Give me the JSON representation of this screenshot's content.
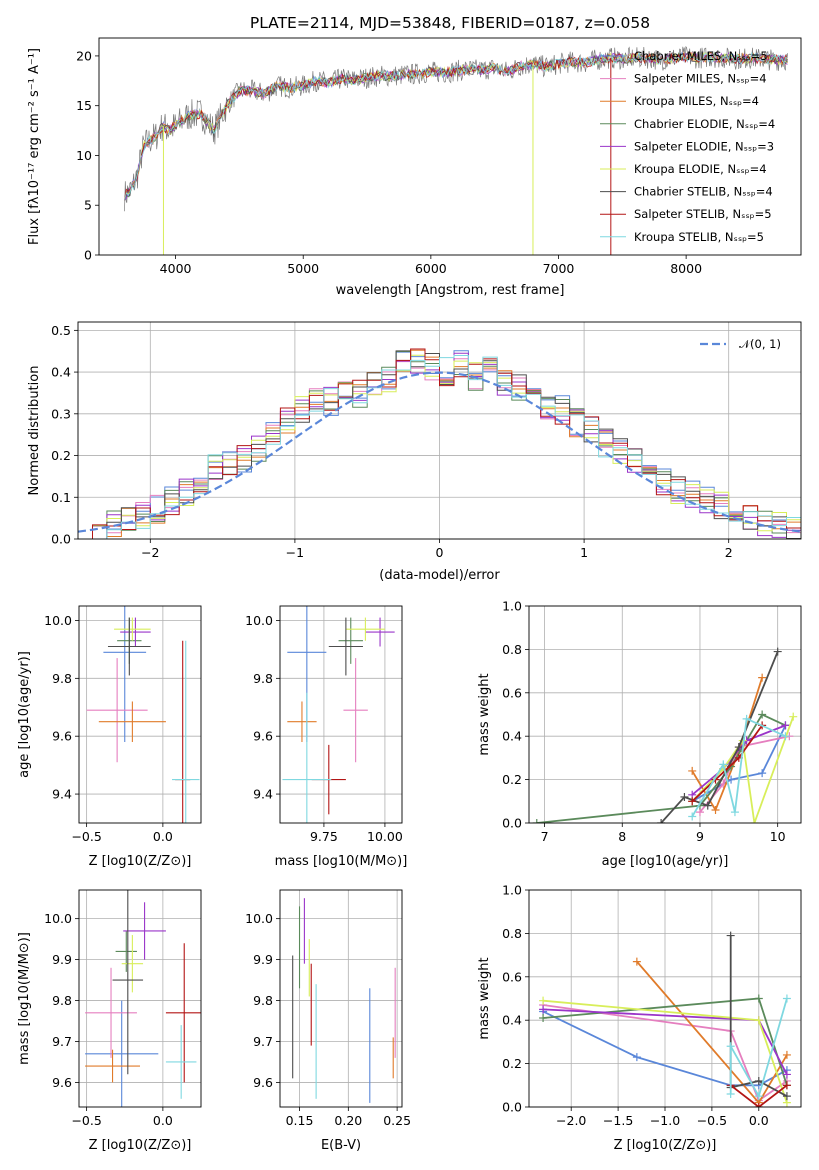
{
  "chart_data": [
    {
      "id": "spectrum",
      "type": "line",
      "title": "PLATE=2114, MJD=53848, FIBERID=0187, z=0.058",
      "xlabel": "wavelength [Angstrom, rest frame]",
      "ylabel": "Flux [fλ10⁻¹⁷ erg cm⁻² s⁻¹ A⁻¹]",
      "xlim": [
        3400,
        8900
      ],
      "ylim": [
        0,
        21.8
      ],
      "xticks": [
        4000,
        5000,
        6000,
        7000,
        8000
      ],
      "yticks": [
        0,
        5,
        10,
        15,
        20
      ],
      "grid": false,
      "legend_position": "right",
      "x": [
        3600,
        3650,
        3700,
        3750,
        3800,
        3850,
        3900,
        3950,
        4000,
        4100,
        4200,
        4300,
        4400,
        4500,
        4600,
        4700,
        4800,
        4900,
        5000,
        5100,
        5200,
        5300,
        5400,
        5500,
        5600,
        5700,
        5800,
        5900,
        6000,
        6100,
        6200,
        6300,
        6400,
        6500,
        6600,
        6700,
        6800,
        6900,
        7000,
        7100,
        7200,
        7300,
        7400,
        7500,
        7600,
        7700,
        7800,
        7900,
        8000,
        8100,
        8200,
        8300,
        8400,
        8500,
        8600,
        8700,
        8800
      ],
      "values": [
        6,
        6.5,
        8,
        11,
        11.5,
        12,
        13,
        12.5,
        13,
        14,
        14.2,
        12.5,
        15,
        16.5,
        16.5,
        16.2,
        17,
        16.8,
        17,
        17.5,
        17.3,
        17.7,
        17.6,
        17.8,
        18,
        18,
        18.1,
        18.2,
        18.4,
        18.3,
        18.5,
        18.6,
        18.6,
        18.8,
        18.4,
        19,
        19.2,
        18.9,
        19.2,
        19.4,
        19.3,
        19.6,
        19.8,
        19.7,
        19.8,
        19.8,
        19.6,
        19.8,
        19.9,
        19.8,
        19.9,
        19.8,
        19.7,
        19.8,
        19.7,
        19.6,
        19.6
      ],
      "series_names": [
        "Chabrier MILES, N_SSP=5",
        "Salpeter MILES, N_SSP=4",
        "Kroupa MILES, N_SSP=4",
        "Chabrier ELODIE, N_SSP=4",
        "Salpeter ELODIE, N_SSP=3",
        "Kroupa ELODIE, N_SSP=4",
        "Chabrier STELIB, N_SSP=4",
        "Salpeter STELIB, N_SSP=5",
        "Kroupa STELIB, N_SSP=5"
      ],
      "series_colors": [
        "#5a87d9",
        "#e57fbf",
        "#e07b2a",
        "#5b8a5b",
        "#9a35c9",
        "#d8ee5a",
        "#4d4d4d",
        "#b31515",
        "#7fd8e0"
      ]
    },
    {
      "id": "residuals",
      "type": "histogram",
      "xlabel": "(data-model)/error",
      "ylabel": "Normed distribution",
      "xlim": [
        -2.5,
        2.5
      ],
      "ylim": [
        0,
        0.52
      ],
      "xticks": [
        -2,
        -1,
        0,
        1,
        2
      ],
      "yticks": [
        0.0,
        0.1,
        0.2,
        0.3,
        0.4,
        0.5
      ],
      "grid": true,
      "legend": "𝒩(0, 1)",
      "legend_position": "top-right",
      "bin_centers": [
        -2.45,
        -2.35,
        -2.25,
        -2.15,
        -2.05,
        -1.95,
        -1.85,
        -1.75,
        -1.65,
        -1.55,
        -1.45,
        -1.35,
        -1.25,
        -1.15,
        -1.05,
        -0.95,
        -0.85,
        -0.75,
        -0.65,
        -0.55,
        -0.45,
        -0.35,
        -0.25,
        -0.15,
        -0.05,
        0.05,
        0.15,
        0.25,
        0.35,
        0.45,
        0.55,
        0.65,
        0.75,
        0.85,
        0.95,
        1.05,
        1.15,
        1.25,
        1.35,
        1.45,
        1.55,
        1.65,
        1.75,
        1.85,
        1.95,
        2.05,
        2.15,
        2.25,
        2.35,
        2.45
      ],
      "values": [
        0.02,
        0.03,
        0.04,
        0.05,
        0.06,
        0.07,
        0.09,
        0.11,
        0.14,
        0.17,
        0.18,
        0.19,
        0.22,
        0.25,
        0.28,
        0.31,
        0.34,
        0.33,
        0.36,
        0.35,
        0.37,
        0.38,
        0.42,
        0.43,
        0.41,
        0.4,
        0.42,
        0.39,
        0.41,
        0.37,
        0.36,
        0.33,
        0.32,
        0.31,
        0.28,
        0.26,
        0.23,
        0.21,
        0.19,
        0.16,
        0.14,
        0.12,
        0.11,
        0.09,
        0.08,
        0.06,
        0.05,
        0.04,
        0.03,
        0.02
      ]
    },
    {
      "id": "age-vs-Z",
      "type": "errorbar",
      "xlabel": "Z [log10(Z/Z⊙)]",
      "ylabel": "age  [log10(age/yr)]",
      "xlim": [
        -0.55,
        0.25
      ],
      "ylim": [
        9.3,
        10.05
      ],
      "xticks": [
        -0.5,
        0.0
      ],
      "yticks": [
        9.4,
        9.6,
        9.8,
        10.0
      ],
      "grid": true,
      "points": [
        {
          "x": -0.25,
          "y": 9.89,
          "xerr": 0.14,
          "yerr": 0.31
        },
        {
          "x": -0.3,
          "y": 9.69,
          "xerr": 0.2,
          "yerr": 0.18
        },
        {
          "x": -0.2,
          "y": 9.65,
          "xerr": 0.22,
          "yerr": 0.07
        },
        {
          "x": -0.22,
          "y": 9.93,
          "xerr": 0.08,
          "yerr": 0.08
        },
        {
          "x": -0.18,
          "y": 9.96,
          "xerr": 0.1,
          "yerr": 0.05
        },
        {
          "x": -0.2,
          "y": 9.97,
          "xerr": 0.12,
          "yerr": 0.04
        },
        {
          "x": -0.22,
          "y": 9.91,
          "xerr": 0.14,
          "yerr": 0.1
        },
        {
          "x": 0.13,
          "y": 9.45,
          "xerr": 0.05,
          "yerr": 0.48
        },
        {
          "x": 0.15,
          "y": 9.45,
          "xerr": 0.09,
          "yerr": 0.48
        }
      ]
    },
    {
      "id": "age-vs-mass",
      "type": "errorbar",
      "xlabel": "mass [log10(M/M⊙)]",
      "ylabel": "",
      "xlim": [
        9.57,
        10.07
      ],
      "ylim": [
        9.3,
        10.05
      ],
      "xticks": [
        9.75,
        10.0
      ],
      "yticks": [
        9.4,
        9.6,
        9.8,
        10.0
      ],
      "grid": true,
      "points": [
        {
          "x": 9.68,
          "y": 9.89,
          "xerr": 0.08,
          "yerr": 0.31
        },
        {
          "x": 9.88,
          "y": 9.69,
          "xerr": 0.05,
          "yerr": 0.18
        },
        {
          "x": 9.66,
          "y": 9.65,
          "xerr": 0.06,
          "yerr": 0.07
        },
        {
          "x": 9.86,
          "y": 9.93,
          "xerr": 0.05,
          "yerr": 0.08
        },
        {
          "x": 9.98,
          "y": 9.96,
          "xerr": 0.06,
          "yerr": 0.05
        },
        {
          "x": 9.92,
          "y": 9.97,
          "xerr": 0.08,
          "yerr": 0.04
        },
        {
          "x": 9.84,
          "y": 9.91,
          "xerr": 0.07,
          "yerr": 0.1
        },
        {
          "x": 9.77,
          "y": 9.45,
          "xerr": 0.07,
          "yerr": 0.12
        },
        {
          "x": 9.68,
          "y": 9.45,
          "xerr": 0.1,
          "yerr": 0.3
        }
      ]
    },
    {
      "id": "weight-vs-age",
      "type": "line",
      "xlabel": "age  [log10(age/yr)]",
      "ylabel": "mass weight",
      "xlim": [
        6.8,
        10.3
      ],
      "ylim": [
        0,
        1.0
      ],
      "xticks": [
        7,
        8,
        9,
        10
      ],
      "yticks": [
        0.0,
        0.2,
        0.4,
        0.6,
        0.8,
        1.0
      ],
      "grid": true,
      "series": [
        {
          "x": [
            8.9,
            9.4,
            9.8,
            10.1
          ],
          "values": [
            0.1,
            0.2,
            0.23,
            0.45
          ]
        },
        {
          "x": [
            9.0,
            9.3,
            9.5,
            10.15
          ],
          "values": [
            0.05,
            0.18,
            0.35,
            0.4
          ]
        },
        {
          "x": [
            8.9,
            9.2,
            9.5,
            9.8
          ],
          "values": [
            0.24,
            0.06,
            0.33,
            0.67
          ]
        },
        {
          "x": [
            6.9,
            9.0,
            9.4,
            9.8,
            10.1
          ],
          "values": [
            0.0,
            0.08,
            0.26,
            0.5,
            0.45
          ]
        },
        {
          "x": [
            8.9,
            9.3,
            9.6,
            10.1
          ],
          "values": [
            0.13,
            0.25,
            0.38,
            0.45
          ]
        },
        {
          "x": [
            8.9,
            9.3,
            9.55,
            9.7,
            10.2
          ],
          "values": [
            0.1,
            0.25,
            0.38,
            0.0,
            0.49
          ]
        },
        {
          "x": [
            8.5,
            8.8,
            9.1,
            9.5,
            10.0
          ],
          "values": [
            0.0,
            0.12,
            0.08,
            0.35,
            0.79
          ]
        },
        {
          "x": [
            8.9,
            9.2,
            9.5,
            9.8
          ],
          "values": [
            0.1,
            0.2,
            0.3,
            0.45
          ]
        },
        {
          "x": [
            8.9,
            9.3,
            9.45,
            9.6,
            10.1
          ],
          "values": [
            0.03,
            0.27,
            0.05,
            0.48,
            0.4
          ]
        }
      ]
    },
    {
      "id": "mass-vs-Z",
      "type": "errorbar",
      "xlabel": "Z [log10(Z/Z⊙)]",
      "ylabel": "mass [log10(M/M⊙)]",
      "xlim": [
        -0.55,
        0.25
      ],
      "ylim": [
        9.54,
        10.07
      ],
      "xticks": [
        -0.5,
        0.0
      ],
      "yticks": [
        9.6,
        9.7,
        9.8,
        9.9,
        10.0
      ],
      "grid": true,
      "points": [
        {
          "x": -0.27,
          "y": 9.67,
          "xerr": 0.24,
          "yerr": 0.13
        },
        {
          "x": -0.34,
          "y": 9.77,
          "xerr": 0.17,
          "yerr": 0.11
        },
        {
          "x": -0.33,
          "y": 9.64,
          "xerr": 0.18,
          "yerr": 0.04
        },
        {
          "x": -0.24,
          "y": 9.92,
          "xerr": 0.07,
          "yerr": 0.05
        },
        {
          "x": -0.12,
          "y": 9.97,
          "xerr": 0.14,
          "yerr": 0.07
        },
        {
          "x": -0.2,
          "y": 9.89,
          "xerr": 0.07,
          "yerr": 0.07
        },
        {
          "x": -0.23,
          "y": 9.85,
          "xerr": 0.1,
          "yerr": 0.23
        },
        {
          "x": 0.14,
          "y": 9.77,
          "xerr": 0.12,
          "yerr": 0.17
        },
        {
          "x": 0.12,
          "y": 9.65,
          "xerr": 0.1,
          "yerr": 0.09
        }
      ]
    },
    {
      "id": "mass-vs-EBV",
      "type": "errorbar",
      "xlabel": "E(B-V)",
      "ylabel": "",
      "xlim": [
        0.13,
        0.255
      ],
      "ylim": [
        9.54,
        10.07
      ],
      "xticks": [
        0.15,
        0.2,
        0.25
      ],
      "yticks": [
        9.6,
        9.7,
        9.8,
        9.9,
        10.0
      ],
      "grid": true,
      "points": [
        {
          "x": 0.222,
          "y": 9.69,
          "yerr": 0.14
        },
        {
          "x": 0.248,
          "y": 9.77,
          "yerr": 0.11
        },
        {
          "x": 0.246,
          "y": 9.66,
          "yerr": 0.05
        },
        {
          "x": 0.15,
          "y": 9.93,
          "yerr": 0.1
        },
        {
          "x": 0.155,
          "y": 9.97,
          "yerr": 0.08
        },
        {
          "x": 0.16,
          "y": 9.88,
          "yerr": 0.07
        },
        {
          "x": 0.143,
          "y": 9.76,
          "yerr": 0.15
        },
        {
          "x": 0.162,
          "y": 9.79,
          "yerr": 0.1
        },
        {
          "x": 0.167,
          "y": 9.7,
          "yerr": 0.14
        }
      ]
    },
    {
      "id": "weight-vs-Z",
      "type": "line",
      "xlabel": "Z [log10(Z/Z⊙)]",
      "ylabel": "mass weight",
      "xlim": [
        -2.45,
        0.45
      ],
      "ylim": [
        0,
        1.0
      ],
      "xticks": [
        -2.0,
        -1.5,
        -1.0,
        -0.5,
        0.0
      ],
      "yticks": [
        0.0,
        0.2,
        0.4,
        0.6,
        0.8,
        1.0
      ],
      "grid": true,
      "series": [
        {
          "x": [
            -2.3,
            -1.3,
            -0.3,
            0.0,
            0.3
          ],
          "values": [
            0.44,
            0.23,
            0.1,
            0.1,
            0.17
          ]
        },
        {
          "x": [
            -2.3,
            -0.3,
            0.0,
            0.3
          ],
          "values": [
            0.47,
            0.35,
            0.03,
            0.12
          ]
        },
        {
          "x": [
            -1.3,
            0.0,
            0.3
          ],
          "values": [
            0.67,
            0.02,
            0.24
          ]
        },
        {
          "x": [
            -2.3,
            0.0,
            0.3
          ],
          "values": [
            0.41,
            0.5,
            0.1
          ]
        },
        {
          "x": [
            -2.3,
            0.0,
            0.3
          ],
          "values": [
            0.45,
            0.4,
            0.15
          ]
        },
        {
          "x": [
            -2.3,
            0.0,
            0.3
          ],
          "values": [
            0.49,
            0.4,
            0.02
          ]
        },
        {
          "x": [
            -0.3,
            -0.3,
            0.0,
            0.3
          ],
          "values": [
            0.79,
            0.09,
            0.12,
            0.05
          ]
        },
        {
          "x": [
            -0.3,
            0.0,
            0.3
          ],
          "values": [
            0.1,
            0.0,
            0.1
          ]
        },
        {
          "x": [
            -0.3,
            -0.3,
            0.0,
            0.3
          ],
          "values": [
            0.06,
            0.28,
            0.05,
            0.5
          ]
        }
      ]
    }
  ]
}
